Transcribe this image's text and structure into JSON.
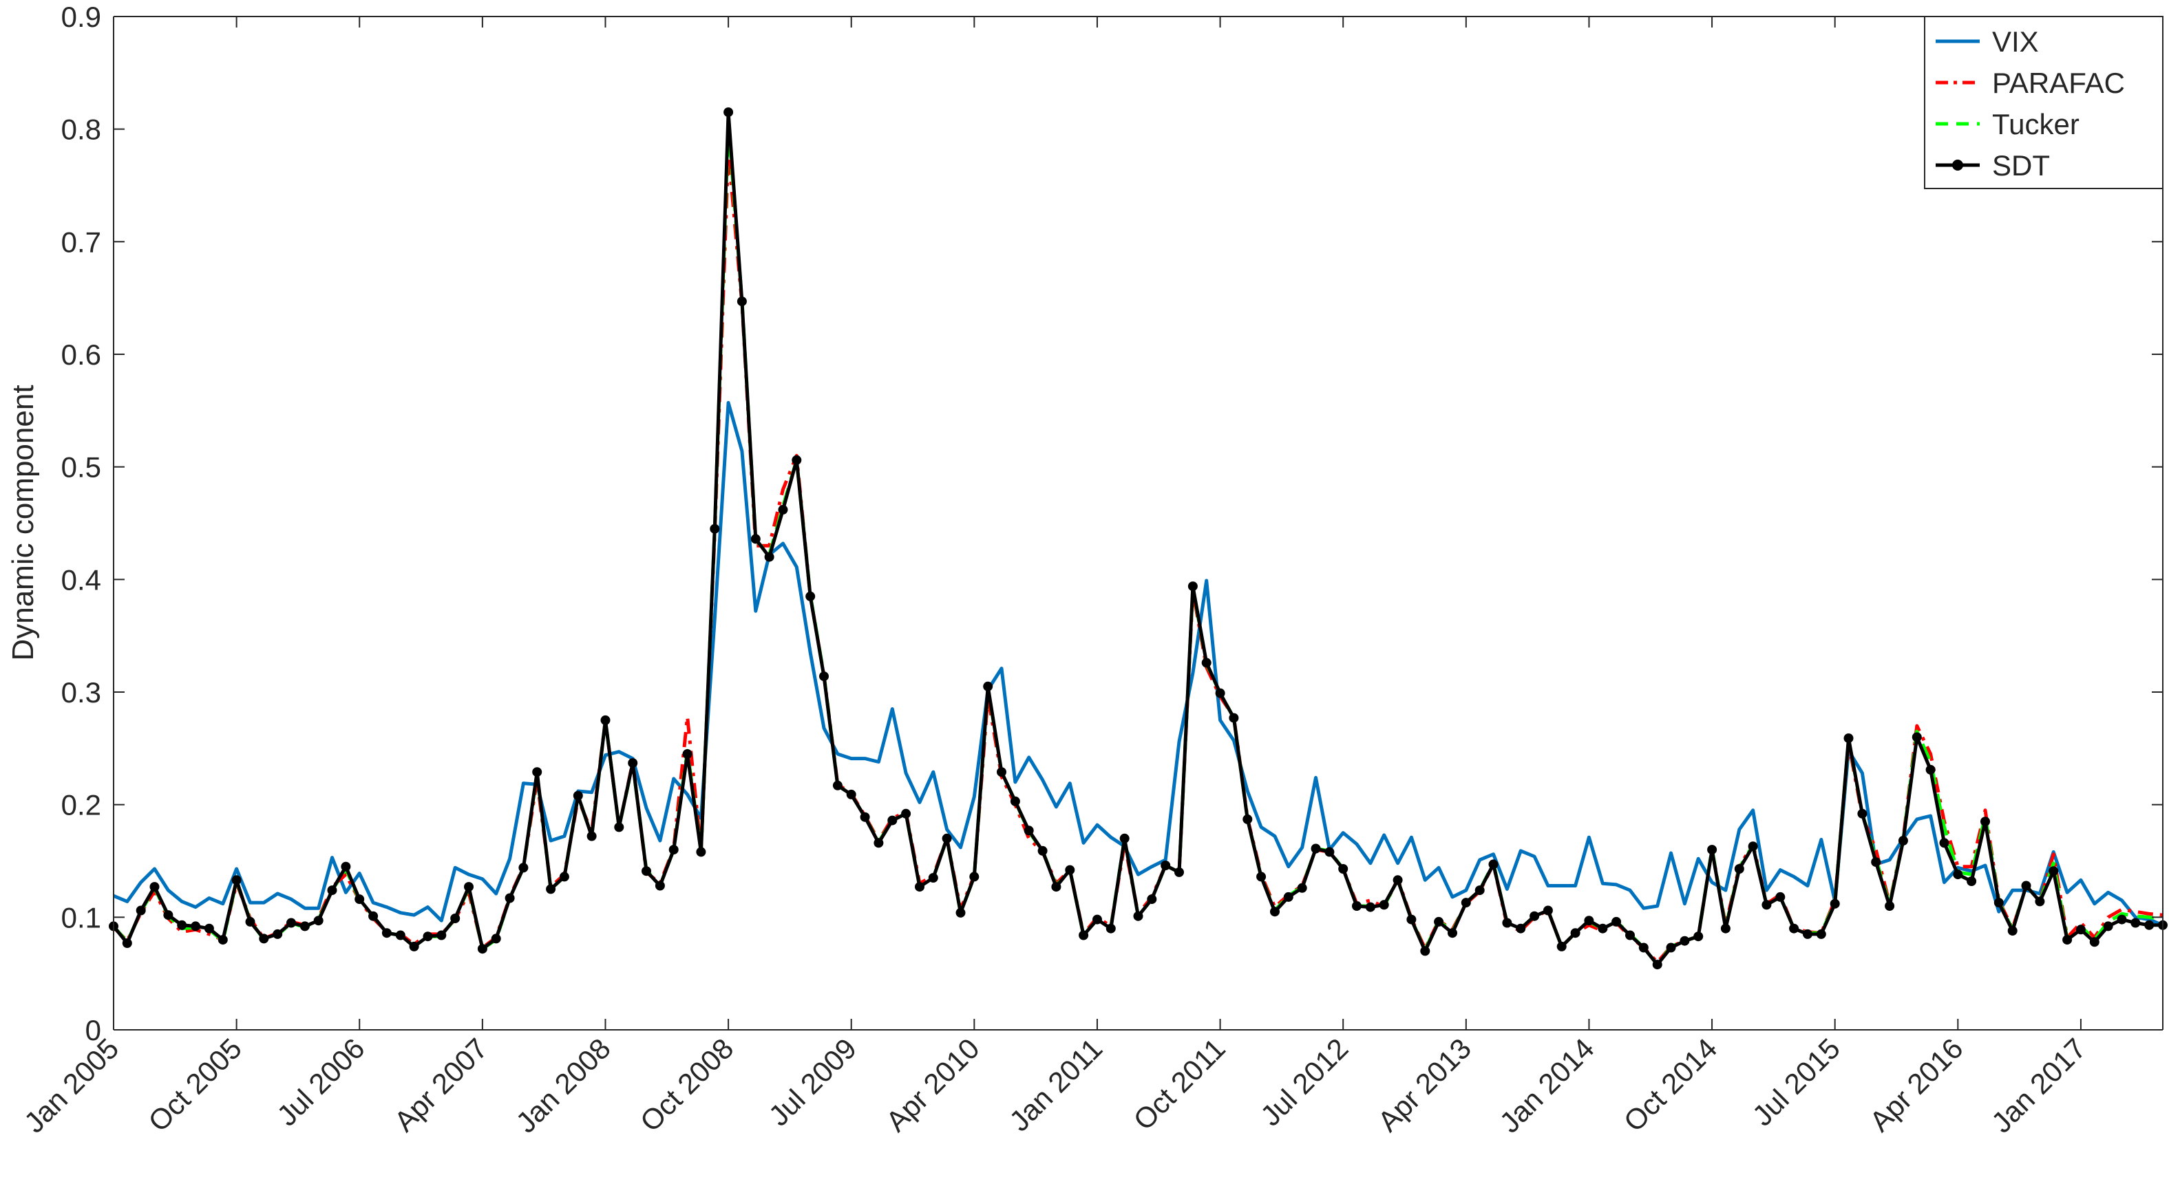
{
  "chart_data": {
    "type": "line",
    "xlabel": "",
    "ylabel": "Dynamic component",
    "ylim": [
      0,
      0.9
    ],
    "yticks": [
      0,
      0.1,
      0.2,
      0.3,
      0.4,
      0.5,
      0.6,
      0.7,
      0.8,
      0.9
    ],
    "ytick_labels": [
      "0",
      "0.1",
      "0.2",
      "0.3",
      "0.4",
      "0.5",
      "0.6",
      "0.7",
      "0.8",
      "0.9"
    ],
    "xlim": [
      "2005-01",
      "2017-07"
    ],
    "xticks": [
      "2005-01",
      "2005-10",
      "2006-07",
      "2007-04",
      "2008-01",
      "2008-10",
      "2009-07",
      "2010-04",
      "2011-01",
      "2011-10",
      "2012-07",
      "2013-04",
      "2014-01",
      "2014-10",
      "2015-07",
      "2016-04",
      "2017-01"
    ],
    "xtick_labels": [
      "Jan 2005",
      "Oct 2005",
      "Jul 2006",
      "Apr 2007",
      "Jan 2008",
      "Oct 2008",
      "Jul 2009",
      "Apr 2010",
      "Jan 2011",
      "Oct 2011",
      "Jul 2012",
      "Apr 2013",
      "Jan 2014",
      "Oct 2014",
      "Jul 2015",
      "Apr 2016",
      "Jan 2017"
    ],
    "grid": false,
    "legend_position": "top-right",
    "x": [
      "2005-01",
      "2005-02",
      "2005-03",
      "2005-04",
      "2005-05",
      "2005-06",
      "2005-07",
      "2005-08",
      "2005-09",
      "2005-10",
      "2005-11",
      "2005-12",
      "2006-01",
      "2006-02",
      "2006-03",
      "2006-04",
      "2006-05",
      "2006-06",
      "2006-07",
      "2006-08",
      "2006-09",
      "2006-10",
      "2006-11",
      "2006-12",
      "2007-01",
      "2007-02",
      "2007-03",
      "2007-04",
      "2007-05",
      "2007-06",
      "2007-07",
      "2007-08",
      "2007-09",
      "2007-10",
      "2007-11",
      "2007-12",
      "2008-01",
      "2008-02",
      "2008-03",
      "2008-04",
      "2008-05",
      "2008-06",
      "2008-07",
      "2008-08",
      "2008-09",
      "2008-10",
      "2008-11",
      "2008-12",
      "2009-01",
      "2009-02",
      "2009-03",
      "2009-04",
      "2009-05",
      "2009-06",
      "2009-07",
      "2009-08",
      "2009-09",
      "2009-10",
      "2009-11",
      "2009-12",
      "2010-01",
      "2010-02",
      "2010-03",
      "2010-04",
      "2010-05",
      "2010-06",
      "2010-07",
      "2010-08",
      "2010-09",
      "2010-10",
      "2010-11",
      "2010-12",
      "2011-01",
      "2011-02",
      "2011-03",
      "2011-04",
      "2011-05",
      "2011-06",
      "2011-07",
      "2011-08",
      "2011-09",
      "2011-10",
      "2011-11",
      "2011-12",
      "2012-01",
      "2012-02",
      "2012-03",
      "2012-04",
      "2012-05",
      "2012-06",
      "2012-07",
      "2012-08",
      "2012-09",
      "2012-10",
      "2012-11",
      "2012-12",
      "2013-01",
      "2013-02",
      "2013-03",
      "2013-04",
      "2013-05",
      "2013-06",
      "2013-07",
      "2013-08",
      "2013-09",
      "2013-10",
      "2013-11",
      "2013-12",
      "2014-01",
      "2014-02",
      "2014-03",
      "2014-04",
      "2014-05",
      "2014-06",
      "2014-07",
      "2014-08",
      "2014-09",
      "2014-10",
      "2014-11",
      "2014-12",
      "2015-01",
      "2015-02",
      "2015-03",
      "2015-04",
      "2015-05",
      "2015-06",
      "2015-07",
      "2015-08",
      "2015-09",
      "2015-10",
      "2015-11",
      "2015-12",
      "2016-01",
      "2016-02",
      "2016-03",
      "2016-04",
      "2016-05",
      "2016-06",
      "2016-07",
      "2016-08",
      "2016-09",
      "2016-10",
      "2016-11",
      "2016-12",
      "2017-01",
      "2017-02",
      "2017-03",
      "2017-04",
      "2017-05",
      "2017-06",
      "2017-07"
    ],
    "series": [
      {
        "name": "VIX",
        "color": "#0072BD",
        "style": "solid",
        "values": [
          0.119,
          0.114,
          0.131,
          0.143,
          0.124,
          0.114,
          0.109,
          0.117,
          0.112,
          0.143,
          0.113,
          0.113,
          0.121,
          0.116,
          0.108,
          0.108,
          0.153,
          0.122,
          0.139,
          0.113,
          0.109,
          0.104,
          0.102,
          0.109,
          0.097,
          0.144,
          0.138,
          0.134,
          0.121,
          0.152,
          0.219,
          0.218,
          0.168,
          0.172,
          0.212,
          0.211,
          0.244,
          0.247,
          0.241,
          0.197,
          0.168,
          0.223,
          0.209,
          0.188,
          0.365,
          0.557,
          0.514,
          0.372,
          0.422,
          0.432,
          0.411,
          0.335,
          0.268,
          0.245,
          0.241,
          0.241,
          0.238,
          0.285,
          0.228,
          0.202,
          0.229,
          0.178,
          0.162,
          0.207,
          0.302,
          0.321,
          0.22,
          0.242,
          0.222,
          0.198,
          0.219,
          0.166,
          0.182,
          0.171,
          0.163,
          0.138,
          0.145,
          0.151,
          0.256,
          0.317,
          0.399,
          0.275,
          0.257,
          0.212,
          0.18,
          0.172,
          0.145,
          0.162,
          0.224,
          0.16,
          0.175,
          0.165,
          0.148,
          0.173,
          0.148,
          0.171,
          0.133,
          0.144,
          0.118,
          0.124,
          0.151,
          0.156,
          0.125,
          0.159,
          0.154,
          0.128,
          0.128,
          0.128,
          0.171,
          0.13,
          0.129,
          0.124,
          0.108,
          0.11,
          0.157,
          0.112,
          0.152,
          0.131,
          0.124,
          0.178,
          0.195,
          0.124,
          0.142,
          0.136,
          0.128,
          0.169,
          0.114,
          0.248,
          0.228,
          0.147,
          0.151,
          0.17,
          0.187,
          0.19,
          0.131,
          0.144,
          0.141,
          0.146,
          0.105,
          0.124,
          0.124,
          0.121,
          0.158,
          0.122,
          0.133,
          0.112,
          0.122,
          0.115,
          0.1,
          0.098,
          0.093
        ]
      },
      {
        "name": "PARAFAC",
        "color": "#FF0000",
        "style": "dash-dot",
        "values": [
          0.091,
          0.079,
          0.104,
          0.123,
          0.099,
          0.087,
          0.089,
          0.085,
          0.08,
          0.13,
          0.099,
          0.081,
          0.086,
          0.096,
          0.093,
          0.099,
          0.127,
          0.138,
          0.115,
          0.099,
          0.087,
          0.085,
          0.076,
          0.085,
          0.085,
          0.098,
          0.122,
          0.073,
          0.082,
          0.118,
          0.145,
          0.222,
          0.127,
          0.138,
          0.205,
          0.176,
          0.275,
          0.18,
          0.238,
          0.14,
          0.13,
          0.161,
          0.278,
          0.159,
          0.44,
          0.78,
          0.645,
          0.43,
          0.43,
          0.48,
          0.51,
          0.385,
          0.315,
          0.218,
          0.21,
          0.19,
          0.168,
          0.188,
          0.193,
          0.13,
          0.137,
          0.17,
          0.107,
          0.137,
          0.296,
          0.225,
          0.2,
          0.17,
          0.158,
          0.13,
          0.142,
          0.085,
          0.1,
          0.092,
          0.165,
          0.103,
          0.118,
          0.146,
          0.14,
          0.39,
          0.322,
          0.296,
          0.278,
          0.188,
          0.138,
          0.109,
          0.12,
          0.128,
          0.16,
          0.158,
          0.143,
          0.112,
          0.115,
          0.109,
          0.134,
          0.099,
          0.072,
          0.097,
          0.089,
          0.112,
          0.123,
          0.147,
          0.093,
          0.088,
          0.1,
          0.106,
          0.074,
          0.086,
          0.093,
          0.088,
          0.095,
          0.083,
          0.073,
          0.06,
          0.074,
          0.079,
          0.083,
          0.16,
          0.093,
          0.145,
          0.165,
          0.112,
          0.12,
          0.09,
          0.087,
          0.086,
          0.115,
          0.255,
          0.19,
          0.16,
          0.112,
          0.17,
          0.27,
          0.245,
          0.185,
          0.145,
          0.145,
          0.195,
          0.115,
          0.09,
          0.128,
          0.114,
          0.156,
          0.082,
          0.095,
          0.082,
          0.1,
          0.107,
          0.105,
          0.103,
          0.102
        ]
      },
      {
        "name": "Tucker",
        "color": "#00FF00",
        "style": "dashed",
        "values": [
          0.092,
          0.078,
          0.105,
          0.126,
          0.101,
          0.09,
          0.091,
          0.089,
          0.079,
          0.132,
          0.097,
          0.08,
          0.084,
          0.095,
          0.091,
          0.098,
          0.124,
          0.143,
          0.115,
          0.101,
          0.086,
          0.084,
          0.074,
          0.083,
          0.083,
          0.099,
          0.126,
          0.072,
          0.08,
          0.117,
          0.144,
          0.228,
          0.125,
          0.136,
          0.208,
          0.172,
          0.275,
          0.18,
          0.236,
          0.142,
          0.128,
          0.16,
          0.248,
          0.158,
          0.445,
          0.805,
          0.648,
          0.435,
          0.422,
          0.465,
          0.506,
          0.386,
          0.315,
          0.217,
          0.209,
          0.189,
          0.167,
          0.186,
          0.192,
          0.127,
          0.135,
          0.17,
          0.104,
          0.136,
          0.304,
          0.229,
          0.203,
          0.176,
          0.159,
          0.128,
          0.142,
          0.084,
          0.098,
          0.091,
          0.17,
          0.101,
          0.116,
          0.146,
          0.14,
          0.393,
          0.325,
          0.299,
          0.277,
          0.187,
          0.136,
          0.106,
          0.119,
          0.127,
          0.161,
          0.159,
          0.143,
          0.11,
          0.11,
          0.11,
          0.133,
          0.098,
          0.071,
          0.097,
          0.087,
          0.113,
          0.124,
          0.148,
          0.095,
          0.09,
          0.101,
          0.106,
          0.074,
          0.086,
          0.096,
          0.09,
          0.096,
          0.085,
          0.073,
          0.058,
          0.074,
          0.079,
          0.083,
          0.161,
          0.091,
          0.144,
          0.164,
          0.111,
          0.118,
          0.09,
          0.086,
          0.086,
          0.113,
          0.258,
          0.192,
          0.152,
          0.111,
          0.169,
          0.265,
          0.238,
          0.18,
          0.14,
          0.138,
          0.19,
          0.114,
          0.089,
          0.128,
          0.114,
          0.148,
          0.081,
          0.092,
          0.08,
          0.096,
          0.103,
          0.101,
          0.1,
          0.098
        ]
      },
      {
        "name": "SDT",
        "color": "#000000",
        "style": "solid-markers",
        "values": [
          0.092,
          0.077,
          0.106,
          0.127,
          0.102,
          0.093,
          0.092,
          0.09,
          0.08,
          0.133,
          0.096,
          0.081,
          0.085,
          0.095,
          0.092,
          0.097,
          0.124,
          0.145,
          0.116,
          0.101,
          0.086,
          0.084,
          0.074,
          0.083,
          0.084,
          0.099,
          0.127,
          0.072,
          0.081,
          0.117,
          0.144,
          0.229,
          0.125,
          0.136,
          0.208,
          0.172,
          0.275,
          0.18,
          0.237,
          0.141,
          0.128,
          0.16,
          0.245,
          0.158,
          0.445,
          0.815,
          0.647,
          0.436,
          0.42,
          0.462,
          0.506,
          0.385,
          0.314,
          0.217,
          0.209,
          0.189,
          0.166,
          0.186,
          0.192,
          0.127,
          0.135,
          0.17,
          0.104,
          0.136,
          0.305,
          0.229,
          0.203,
          0.177,
          0.159,
          0.127,
          0.142,
          0.084,
          0.098,
          0.09,
          0.17,
          0.101,
          0.116,
          0.146,
          0.14,
          0.394,
          0.326,
          0.299,
          0.277,
          0.187,
          0.136,
          0.105,
          0.118,
          0.126,
          0.161,
          0.158,
          0.143,
          0.11,
          0.109,
          0.111,
          0.133,
          0.098,
          0.07,
          0.096,
          0.086,
          0.113,
          0.124,
          0.147,
          0.095,
          0.09,
          0.101,
          0.106,
          0.074,
          0.086,
          0.097,
          0.09,
          0.096,
          0.084,
          0.073,
          0.058,
          0.073,
          0.079,
          0.083,
          0.16,
          0.09,
          0.143,
          0.163,
          0.111,
          0.118,
          0.09,
          0.085,
          0.085,
          0.112,
          0.259,
          0.192,
          0.149,
          0.11,
          0.168,
          0.26,
          0.231,
          0.166,
          0.138,
          0.132,
          0.185,
          0.113,
          0.088,
          0.128,
          0.114,
          0.141,
          0.08,
          0.089,
          0.078,
          0.092,
          0.098,
          0.095,
          0.093,
          0.093
        ]
      }
    ]
  }
}
